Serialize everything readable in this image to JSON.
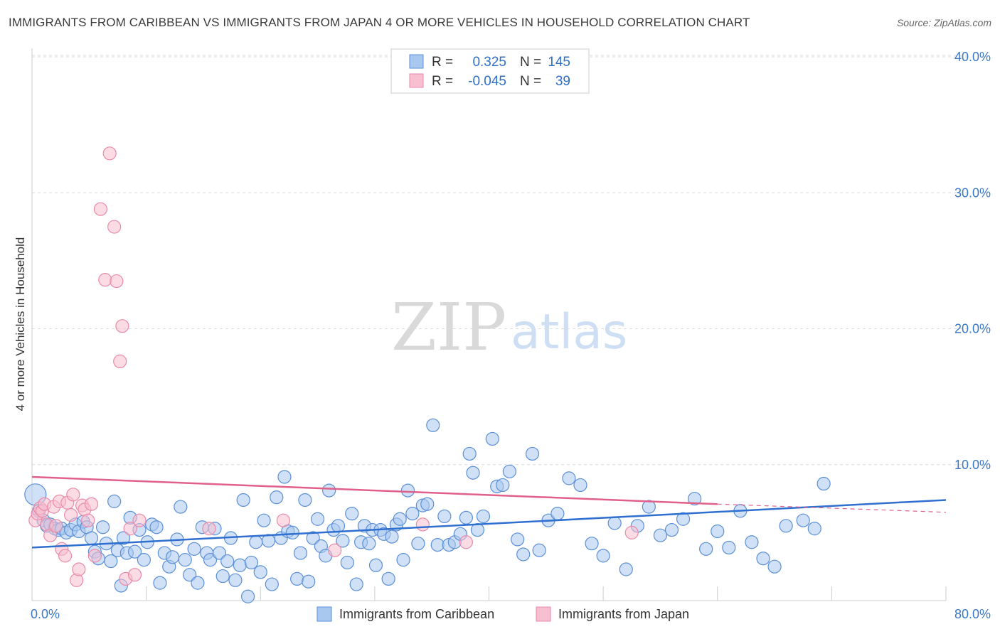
{
  "title": "IMMIGRANTS FROM CARIBBEAN VS IMMIGRANTS FROM JAPAN 4 OR MORE VEHICLES IN HOUSEHOLD CORRELATION CHART",
  "source": "Source: ZipAtlas.com",
  "watermark": {
    "zip": "ZIP",
    "atlas": "atlas"
  },
  "colors": {
    "caribbean_fill": "#a9c8f0",
    "caribbean_stroke": "#5b8fd6",
    "caribbean_line": "#2e6fd0",
    "japan_fill": "#f7bfd0",
    "japan_stroke": "#e98aa8",
    "japan_line": "#e0608a",
    "grid": "#dcdcdc",
    "tick": "#3a78c9"
  },
  "legend": {
    "rows": [
      {
        "r_label": "R =",
        "r_value": "0.325",
        "n_label": "N =",
        "n_value": "145"
      },
      {
        "r_label": "R =",
        "r_value": "-0.045",
        "n_label": "N =",
        "n_value": "39"
      }
    ]
  },
  "bottom_legend": [
    "Immigrants from Caribbean",
    "Immigrants from Japan"
  ],
  "chart_data": {
    "type": "scatter",
    "title": "IMMIGRANTS FROM CARIBBEAN VS IMMIGRANTS FROM JAPAN 4 OR MORE VEHICLES IN HOUSEHOLD CORRELATION CHART",
    "xlabel": "",
    "ylabel": "4 or more Vehicles in Household",
    "xlim": [
      0,
      80
    ],
    "ylim": [
      0,
      40
    ],
    "x_tick_labels": [
      "0.0%",
      "80.0%"
    ],
    "y_ticks": [
      10,
      20,
      30,
      40
    ],
    "y_tick_labels": [
      "10.0%",
      "20.0%",
      "30.0%",
      "40.0%"
    ],
    "grid": true,
    "series": [
      {
        "name": "Immigrants from Caribbean",
        "R": 0.325,
        "N": 145,
        "trend": {
          "x": [
            0,
            80
          ],
          "y": [
            3.9,
            7.4
          ]
        },
        "points": [
          [
            0.3,
            7.8
          ],
          [
            0.6,
            6.6
          ],
          [
            1.0,
            5.9
          ],
          [
            1.3,
            5.5
          ],
          [
            1.6,
            5.6
          ],
          [
            2.0,
            5.3
          ],
          [
            2.3,
            5.2
          ],
          [
            2.6,
            5.3
          ],
          [
            3.0,
            5.0
          ],
          [
            3.4,
            5.2
          ],
          [
            3.8,
            5.6
          ],
          [
            4.1,
            5.1
          ],
          [
            4.5,
            5.8
          ],
          [
            4.8,
            5.4
          ],
          [
            5.2,
            4.6
          ],
          [
            5.5,
            3.6
          ],
          [
            5.8,
            3.1
          ],
          [
            6.2,
            5.4
          ],
          [
            6.5,
            4.2
          ],
          [
            6.9,
            2.9
          ],
          [
            7.2,
            7.3
          ],
          [
            7.5,
            3.7
          ],
          [
            7.8,
            1.1
          ],
          [
            8.0,
            4.6
          ],
          [
            8.3,
            3.5
          ],
          [
            8.6,
            6.1
          ],
          [
            9.0,
            3.6
          ],
          [
            9.4,
            5.2
          ],
          [
            9.8,
            3.0
          ],
          [
            10.1,
            4.3
          ],
          [
            10.5,
            5.6
          ],
          [
            10.9,
            5.4
          ],
          [
            11.2,
            1.3
          ],
          [
            11.6,
            3.5
          ],
          [
            12.0,
            2.5
          ],
          [
            12.3,
            3.2
          ],
          [
            12.7,
            4.5
          ],
          [
            13.0,
            6.9
          ],
          [
            13.4,
            3.0
          ],
          [
            13.8,
            1.9
          ],
          [
            14.2,
            3.8
          ],
          [
            14.5,
            1.3
          ],
          [
            14.9,
            5.4
          ],
          [
            15.3,
            3.5
          ],
          [
            15.6,
            3.0
          ],
          [
            16.0,
            5.3
          ],
          [
            16.4,
            3.5
          ],
          [
            16.7,
            1.8
          ],
          [
            17.1,
            2.9
          ],
          [
            17.4,
            4.6
          ],
          [
            17.8,
            1.5
          ],
          [
            18.2,
            2.6
          ],
          [
            18.5,
            7.4
          ],
          [
            18.9,
            0.3
          ],
          [
            19.2,
            2.8
          ],
          [
            19.6,
            4.3
          ],
          [
            20.0,
            2.1
          ],
          [
            20.3,
            5.9
          ],
          [
            20.7,
            4.4
          ],
          [
            21.0,
            1.2
          ],
          [
            21.4,
            7.6
          ],
          [
            21.8,
            4.6
          ],
          [
            22.1,
            9.1
          ],
          [
            22.4,
            5.1
          ],
          [
            22.8,
            5.0
          ],
          [
            23.2,
            1.6
          ],
          [
            23.5,
            3.5
          ],
          [
            23.9,
            7.4
          ],
          [
            24.2,
            1.4
          ],
          [
            24.6,
            4.6
          ],
          [
            25.0,
            6.0
          ],
          [
            25.3,
            4.0
          ],
          [
            25.7,
            3.3
          ],
          [
            26.0,
            8.1
          ],
          [
            26.4,
            5.2
          ],
          [
            26.8,
            5.5
          ],
          [
            27.2,
            4.4
          ],
          [
            27.6,
            2.8
          ],
          [
            28.0,
            6.4
          ],
          [
            28.4,
            1.2
          ],
          [
            28.8,
            4.3
          ],
          [
            29.1,
            5.5
          ],
          [
            29.5,
            4.2
          ],
          [
            29.8,
            5.2
          ],
          [
            30.1,
            2.6
          ],
          [
            30.5,
            5.2
          ],
          [
            30.8,
            4.9
          ],
          [
            31.2,
            1.6
          ],
          [
            31.5,
            4.7
          ],
          [
            31.9,
            5.6
          ],
          [
            32.2,
            6.0
          ],
          [
            32.5,
            3.0
          ],
          [
            32.9,
            8.1
          ],
          [
            33.3,
            6.4
          ],
          [
            33.8,
            4.2
          ],
          [
            34.2,
            7.0
          ],
          [
            34.6,
            7.1
          ],
          [
            35.1,
            12.9
          ],
          [
            35.5,
            4.1
          ],
          [
            36.1,
            6.2
          ],
          [
            36.5,
            4.1
          ],
          [
            37.0,
            4.3
          ],
          [
            37.5,
            4.9
          ],
          [
            38.0,
            6.1
          ],
          [
            38.3,
            10.8
          ],
          [
            38.6,
            9.4
          ],
          [
            39.0,
            5.2
          ],
          [
            39.5,
            6.2
          ],
          [
            40.3,
            11.9
          ],
          [
            40.7,
            8.4
          ],
          [
            41.2,
            8.5
          ],
          [
            41.8,
            9.5
          ],
          [
            42.5,
            4.5
          ],
          [
            43.0,
            3.4
          ],
          [
            43.8,
            10.8
          ],
          [
            44.4,
            3.7
          ],
          [
            45.2,
            5.9
          ],
          [
            46.0,
            6.4
          ],
          [
            47.0,
            9.0
          ],
          [
            48.0,
            8.5
          ],
          [
            49.0,
            4.2
          ],
          [
            50.0,
            3.3
          ],
          [
            51.0,
            5.7
          ],
          [
            52.0,
            2.3
          ],
          [
            53.0,
            5.5
          ],
          [
            54.0,
            6.9
          ],
          [
            55.0,
            4.8
          ],
          [
            56.0,
            5.2
          ],
          [
            57.0,
            6.0
          ],
          [
            58.0,
            7.5
          ],
          [
            59.0,
            3.8
          ],
          [
            60.0,
            5.1
          ],
          [
            61.0,
            3.9
          ],
          [
            62.0,
            6.6
          ],
          [
            63.0,
            4.3
          ],
          [
            64.0,
            3.1
          ],
          [
            65.0,
            2.5
          ],
          [
            66.0,
            5.5
          ],
          [
            67.5,
            5.9
          ],
          [
            68.5,
            5.3
          ],
          [
            69.3,
            8.6
          ]
        ]
      },
      {
        "name": "Immigrants from Japan",
        "R": -0.045,
        "N": 39,
        "trend": {
          "x": [
            0,
            60
          ],
          "y": [
            9.1,
            7.1
          ]
        },
        "trend_dashed": {
          "x": [
            60,
            80
          ],
          "y": [
            7.1,
            6.5
          ]
        },
        "points": [
          [
            0.3,
            5.9
          ],
          [
            0.5,
            6.4
          ],
          [
            0.7,
            6.8
          ],
          [
            0.9,
            6.6
          ],
          [
            1.1,
            7.1
          ],
          [
            1.3,
            5.6
          ],
          [
            1.6,
            4.8
          ],
          [
            1.9,
            6.9
          ],
          [
            2.1,
            5.5
          ],
          [
            2.4,
            7.3
          ],
          [
            2.6,
            3.8
          ],
          [
            2.9,
            3.3
          ],
          [
            3.1,
            7.2
          ],
          [
            3.4,
            6.3
          ],
          [
            3.6,
            7.8
          ],
          [
            3.9,
            1.5
          ],
          [
            4.1,
            2.3
          ],
          [
            4.4,
            7.0
          ],
          [
            4.6,
            6.7
          ],
          [
            4.9,
            5.9
          ],
          [
            5.2,
            7.1
          ],
          [
            5.5,
            3.3
          ],
          [
            6.0,
            28.8
          ],
          [
            6.4,
            23.6
          ],
          [
            6.8,
            32.9
          ],
          [
            7.2,
            27.5
          ],
          [
            7.4,
            23.5
          ],
          [
            7.7,
            17.6
          ],
          [
            7.9,
            20.2
          ],
          [
            8.2,
            1.6
          ],
          [
            8.6,
            5.3
          ],
          [
            9.0,
            1.9
          ],
          [
            9.4,
            5.9
          ],
          [
            15.5,
            5.3
          ],
          [
            22.0,
            5.9
          ],
          [
            26.5,
            3.7
          ],
          [
            34.2,
            5.6
          ],
          [
            38.0,
            4.3
          ],
          [
            52.5,
            5.0
          ]
        ]
      }
    ]
  }
}
